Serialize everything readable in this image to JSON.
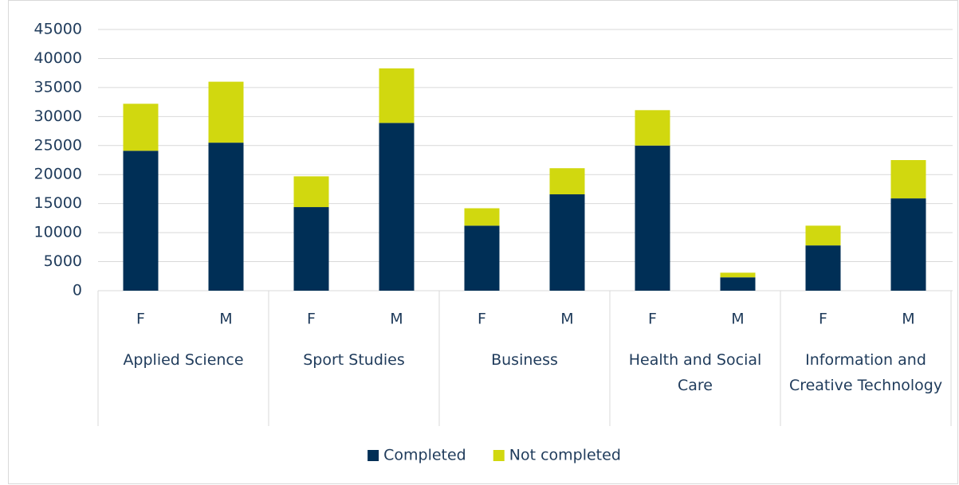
{
  "chart_data": {
    "type": "bar",
    "stacked": true,
    "categories": [
      "F",
      "M",
      "F",
      "M",
      "F",
      "M",
      "F",
      "M",
      "F",
      "M"
    ],
    "groups": [
      "Applied Science",
      "Sport Studies",
      "Business",
      "Health and Social Care",
      "Information and Creative Technology"
    ],
    "series": [
      {
        "name": "Completed",
        "color": "#002f56",
        "values": [
          24100,
          25500,
          14400,
          28900,
          11200,
          16600,
          25000,
          2300,
          7800,
          15900
        ]
      },
      {
        "name": "Not completed",
        "color": "#d1d80f",
        "values": [
          8100,
          10500,
          5300,
          9400,
          3000,
          4500,
          6100,
          800,
          3400,
          6600
        ]
      }
    ],
    "ylim": [
      0,
      45000
    ],
    "yticks": [
      0,
      5000,
      10000,
      15000,
      20000,
      25000,
      30000,
      35000,
      40000,
      45000
    ],
    "grid": true,
    "legend": "bottom"
  }
}
